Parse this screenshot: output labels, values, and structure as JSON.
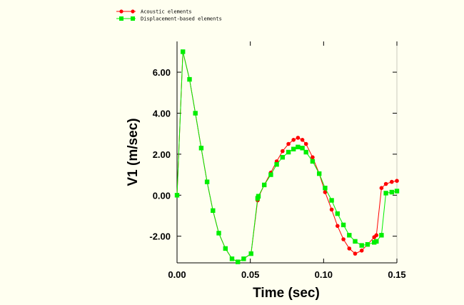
{
  "chart_data": {
    "type": "line",
    "title": "",
    "xlabel": "Time (sec)",
    "ylabel": "V1 (m/sec)",
    "xlim": [
      0,
      0.15
    ],
    "ylim": [
      -3.3,
      7.5
    ],
    "x_ticks": [
      0.0,
      0.05,
      0.1,
      0.15
    ],
    "x_tick_labels": [
      "0.00",
      "0.05",
      "0.10",
      "0.15"
    ],
    "y_ticks": [
      -2,
      0,
      2,
      4,
      6
    ],
    "y_tick_labels": [
      "-2.00",
      "0.00",
      "2.00",
      "4.00",
      "6.00"
    ],
    "grid": false,
    "legend_position": "top-left, outside plot",
    "series": [
      {
        "name": "Acoustic elements",
        "color": "#ff0000",
        "marker": "circle",
        "x": [
          0,
          0.004,
          0.0085,
          0.0125,
          0.0165,
          0.0205,
          0.0245,
          0.0285,
          0.033,
          0.0375,
          0.0415,
          0.0455,
          0.0505,
          0.055,
          0.0555,
          0.0595,
          0.064,
          0.068,
          0.072,
          0.076,
          0.0795,
          0.0825,
          0.0855,
          0.088,
          0.0925,
          0.097,
          0.101,
          0.1055,
          0.1095,
          0.1135,
          0.1175,
          0.1215,
          0.126,
          0.13,
          0.1345,
          0.136,
          0.1395,
          0.1425,
          0.1465,
          0.15
        ],
        "y": [
          0.0,
          7.0,
          5.65,
          4.0,
          2.3,
          0.65,
          -0.75,
          -1.85,
          -2.6,
          -3.1,
          -3.25,
          -3.1,
          -2.85,
          -0.25,
          -0.1,
          0.5,
          1.1,
          1.65,
          2.15,
          2.5,
          2.7,
          2.8,
          2.7,
          2.5,
          1.85,
          1.05,
          0.15,
          -0.7,
          -1.5,
          -2.15,
          -2.6,
          -2.85,
          -2.7,
          -2.4,
          -2.05,
          -1.95,
          0.35,
          0.55,
          0.65,
          0.7
        ]
      },
      {
        "name": "Displacement-based elements",
        "color": "#00ee00",
        "marker": "square",
        "x": [
          0,
          0.004,
          0.0085,
          0.0125,
          0.0165,
          0.0205,
          0.0245,
          0.0285,
          0.033,
          0.0375,
          0.0415,
          0.0455,
          0.0505,
          0.055,
          0.0555,
          0.0595,
          0.064,
          0.068,
          0.072,
          0.076,
          0.0795,
          0.0825,
          0.0855,
          0.088,
          0.0925,
          0.097,
          0.101,
          0.1055,
          0.1095,
          0.1135,
          0.1175,
          0.1215,
          0.126,
          0.13,
          0.1345,
          0.136,
          0.1395,
          0.1425,
          0.1465,
          0.15
        ],
        "y": [
          0.0,
          7.0,
          5.65,
          4.0,
          2.3,
          0.65,
          -0.75,
          -1.85,
          -2.6,
          -3.1,
          -3.25,
          -3.1,
          -2.85,
          -0.15,
          -0.05,
          0.5,
          1.0,
          1.5,
          1.85,
          2.1,
          2.25,
          2.35,
          2.3,
          2.1,
          1.65,
          1.05,
          0.35,
          -0.25,
          -0.9,
          -1.45,
          -1.95,
          -2.25,
          -2.45,
          -2.4,
          -2.3,
          -2.25,
          -1.95,
          0.1,
          0.15,
          0.2
        ]
      }
    ]
  }
}
